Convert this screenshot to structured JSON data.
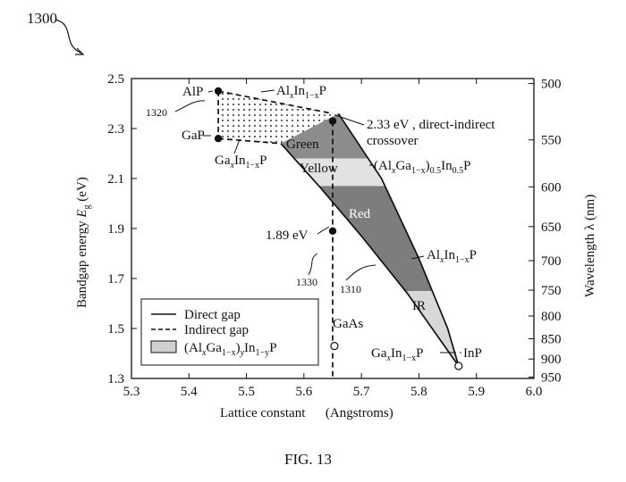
{
  "figure": {
    "ref_number": "1300",
    "caption": "FIG. 13"
  },
  "chart_data": {
    "type": "scatter",
    "xlabel": "Lattice constant      (Angstroms)",
    "ylabel_left": {
      "pre": "Bandgap energy  ",
      "sym": "E",
      "sub": "g",
      "post": " (eV)"
    },
    "ylabel_right": "Wavelength λ (nm)",
    "xlim": [
      5.3,
      6.0
    ],
    "ylim": [
      1.3,
      2.5
    ],
    "x_ticks": [
      "5.3",
      "5.4",
      "5.5",
      "5.6",
      "5.7",
      "5.8",
      "5.9",
      "6.0"
    ],
    "y_ticks": [
      "1.3",
      "1.5",
      "1.7",
      "1.9",
      "2.1",
      "2.3",
      "2.5"
    ],
    "y_tick_values": [
      1.3,
      1.5,
      1.7,
      1.9,
      2.1,
      2.3,
      2.5
    ],
    "right_axis_ticks": [
      {
        "label": "500",
        "wavelength_nm": 500
      },
      {
        "label": "550",
        "wavelength_nm": 550
      },
      {
        "label": "600",
        "wavelength_nm": 600
      },
      {
        "label": "650",
        "wavelength_nm": 650
      },
      {
        "label": "700",
        "wavelength_nm": 700
      },
      {
        "label": "750",
        "wavelength_nm": 750
      },
      {
        "label": "800",
        "wavelength_nm": 800
      },
      {
        "label": "850",
        "wavelength_nm": 850
      },
      {
        "label": "900",
        "wavelength_nm": 900
      },
      {
        "label": "950",
        "wavelength_nm": 950
      }
    ],
    "points": [
      {
        "label": "AlP",
        "x": 5.451,
        "y": 2.45,
        "filled": true
      },
      {
        "label": "GaP",
        "x": 5.451,
        "y": 2.26,
        "filled": true
      },
      {
        "label": "crossover",
        "x": 5.65,
        "y": 2.33,
        "filled": true
      },
      {
        "label": "1.89 eV",
        "x": 5.65,
        "y": 1.89,
        "filled": true
      },
      {
        "label": "GaAs",
        "x": 5.653,
        "y": 1.43,
        "filled": false
      },
      {
        "label": "InP",
        "x": 5.869,
        "y": 1.35,
        "filled": false
      }
    ],
    "series": [
      {
        "name": "AlxIn1-xP (indirect)",
        "style": "dashed",
        "points": [
          [
            5.451,
            2.45
          ],
          [
            5.65,
            2.36
          ]
        ]
      },
      {
        "name": "GaxIn1-xP (indirect)",
        "style": "dashed",
        "points": [
          [
            5.451,
            2.26
          ],
          [
            5.56,
            2.24
          ]
        ]
      },
      {
        "name": "AlP-GaP",
        "style": "dashed",
        "points": [
          [
            5.451,
            2.45
          ],
          [
            5.451,
            2.26
          ]
        ]
      },
      {
        "name": "AlxIn1-xP (direct)",
        "style": "solid",
        "points": [
          [
            5.66,
            2.36
          ],
          [
            5.735,
            2.1
          ],
          [
            5.8,
            1.78
          ],
          [
            5.85,
            1.5
          ],
          [
            5.869,
            1.35
          ]
        ]
      },
      {
        "name": "GaxIn1-xP (direct)",
        "style": "solid",
        "points": [
          [
            5.56,
            2.24
          ],
          [
            5.63,
            2.06
          ],
          [
            5.7,
            1.87
          ],
          [
            5.78,
            1.64
          ],
          [
            5.869,
            1.35
          ]
        ]
      },
      {
        "name": "GaAs lattice-match",
        "style": "dashed",
        "points": [
          [
            5.65,
            2.33
          ],
          [
            5.65,
            1.3
          ]
        ]
      }
    ],
    "regions": [
      {
        "name": "Green",
        "y_range": [
          2.18,
          2.36
        ],
        "fill": "#8c8c8c"
      },
      {
        "name": "Yellow",
        "y_range": [
          2.07,
          2.18
        ],
        "fill": "#e2e2e2"
      },
      {
        "name": "Red",
        "y_range": [
          1.65,
          2.07
        ],
        "fill": "#7d7d7d"
      },
      {
        "name": "IR",
        "y_range": [
          1.35,
          1.65
        ],
        "fill": "#d8d8d8"
      }
    ],
    "indirect_region_fill": "dotted",
    "legend": [
      {
        "label": "Direct gap",
        "style": "solid"
      },
      {
        "label": "Indirect gap",
        "style": "dashed"
      },
      {
        "label": "(AlxGa1-x)yIn1-yP",
        "style": "box"
      }
    ],
    "legend_position": "bottom-left",
    "grid": false
  },
  "annotations": {
    "AlP": "AlP",
    "GaP": "GaP",
    "GaAs": "GaAs",
    "InP": "InP",
    "ev189": "1.89 eV",
    "crossover_1": "2.33 eV , direct-indirect",
    "crossover_2": "crossover",
    "ref1320": "1320",
    "ref1330": "1330",
    "ref1310": "1310",
    "Green": "Green",
    "Yellow": "Yellow",
    "Red": "Red",
    "IR": "IR",
    "AlInP_top": {
      "a": "Al",
      "b": "x",
      "c": "In",
      "d": "1−x",
      "e": "P"
    },
    "GaInP_mid": {
      "a": "Ga",
      "b": "x",
      "c": "In",
      "d": "1−x",
      "e": "P"
    },
    "AlInP_right": {
      "a": "Al",
      "b": "x",
      "c": "In",
      "d": "1−x",
      "e": "P"
    },
    "GaInP_bottom": {
      "a": "Ga",
      "b": "x",
      "c": "In",
      "d": "1−x",
      "e": "P"
    },
    "AlGaInP_yellow": {
      "a": "(Al",
      "b": "x",
      "c": "Ga",
      "d": "1−x",
      "e": ")",
      "f": "0.5",
      "g": "In",
      "h": "0.5",
      "i": "P"
    }
  },
  "legend_text": {
    "direct": "Direct gap",
    "indirect": "Indirect gap",
    "quat": {
      "a": "(Al",
      "b": "x",
      "c": "Ga",
      "d": "1−x",
      "e": ")",
      "f": "y",
      "g": "In",
      "h": "1−y",
      "i": "P"
    }
  }
}
